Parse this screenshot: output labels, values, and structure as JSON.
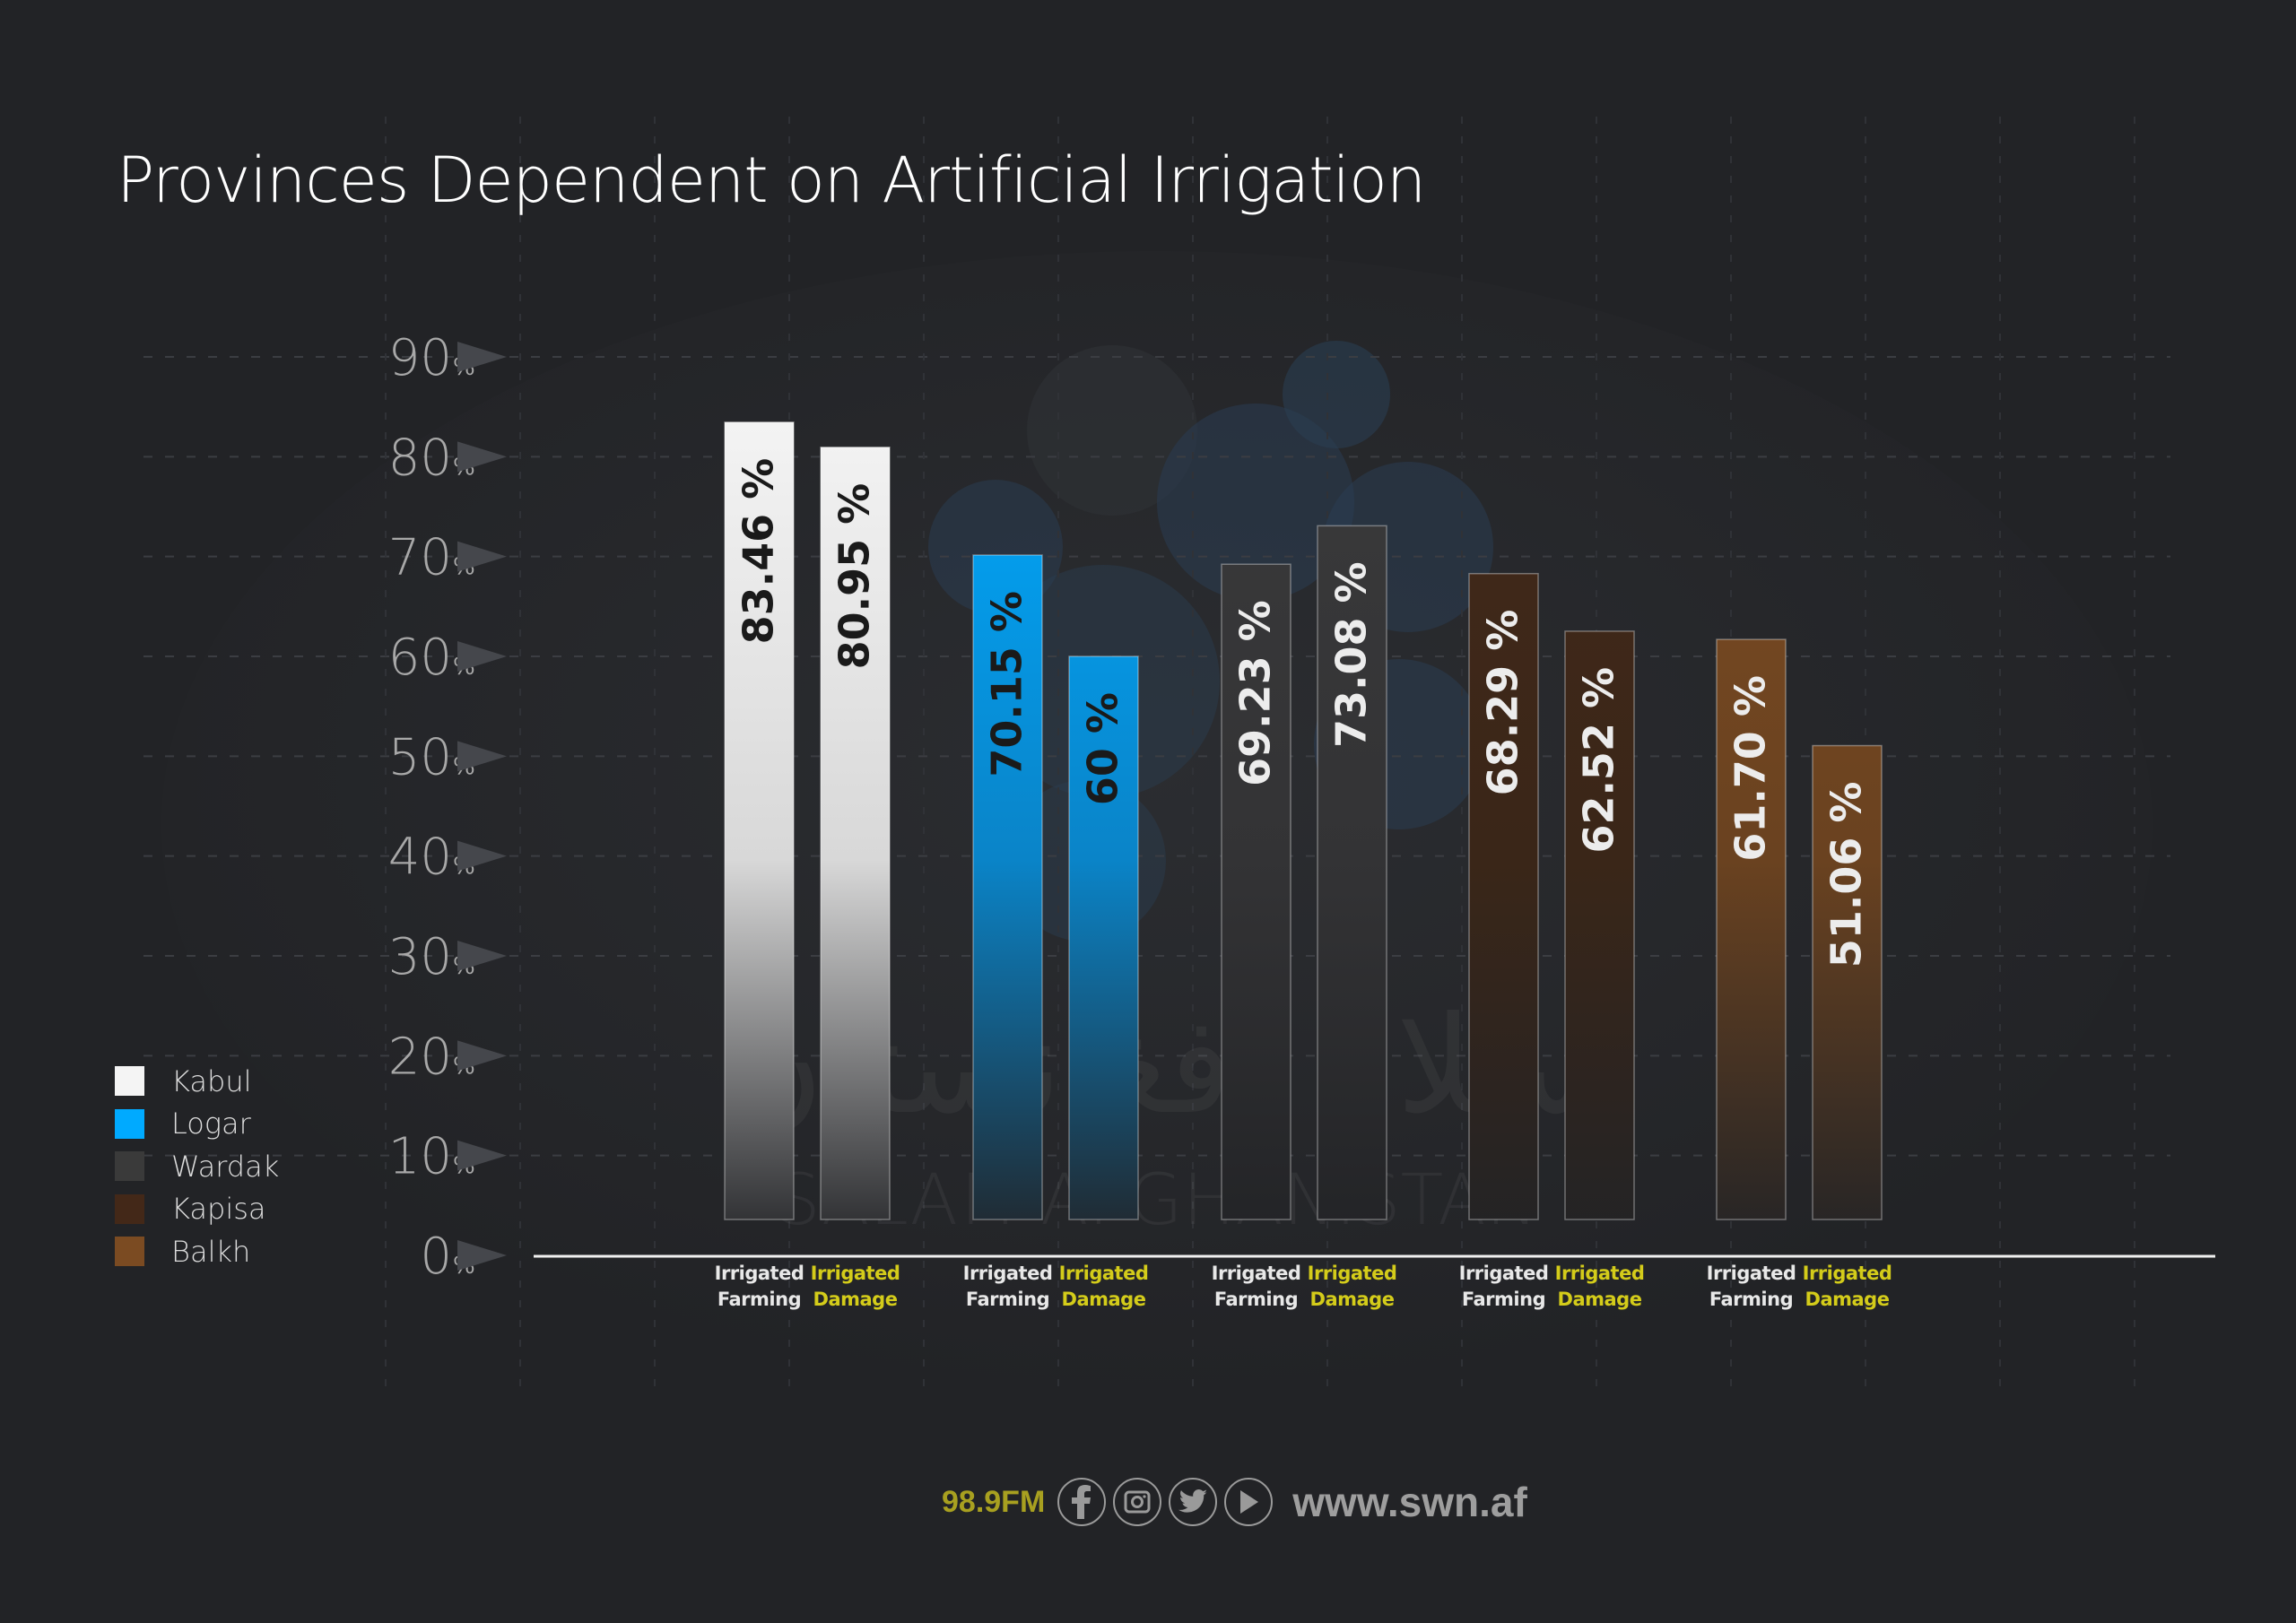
{
  "title": "Provinces Dependent on Artificial Irrigation",
  "watermark": {
    "arabic": "سلام افغانستان",
    "latin": "SALAM AFGHANISTAN"
  },
  "legend": [
    {
      "label": "Kabul",
      "color": "#f4f4f4"
    },
    {
      "label": "Logar",
      "color": "#00aaff"
    },
    {
      "label": "Wardak",
      "color": "#3a3a3a"
    },
    {
      "label": "Kapisa",
      "color": "#432818"
    },
    {
      "label": "Balkh",
      "color": "#7b4b22"
    }
  ],
  "footer": {
    "frequency": "98.9FM",
    "icons": [
      "facebook-icon",
      "instagram-icon",
      "twitter-icon",
      "youtube-play-icon"
    ],
    "url": "www.swn.af"
  },
  "chart_data": {
    "type": "bar",
    "title": "Provinces Dependent on Artificial Irrigation",
    "xlabel": "",
    "ylabel": "",
    "ylim": [
      0,
      90
    ],
    "yticks": [
      0,
      10,
      20,
      30,
      40,
      50,
      60,
      70,
      80,
      90
    ],
    "ytick_labels": [
      "0",
      "10",
      "20",
      "30",
      "40",
      "50",
      "60",
      "70",
      "80",
      "90"
    ],
    "ytick_suffix": "%",
    "grid": true,
    "legend_position": "left",
    "categories": [
      "Kabul",
      "Logar",
      "Wardak",
      "Kapisa",
      "Balkh"
    ],
    "bar_labels": {
      "farming": [
        "Irrigated",
        "Farming"
      ],
      "damage": [
        "Irrigated",
        "Damage"
      ]
    },
    "series": [
      {
        "name": "Irrigated Farming",
        "values": [
          83.46,
          70.15,
          69.23,
          68.29,
          61.7
        ]
      },
      {
        "name": "Irrigated Damage",
        "values": [
          80.95,
          60,
          73.08,
          62.52,
          51.06
        ]
      }
    ],
    "data_labels": {
      "farming": [
        "83.46 %",
        "70.15 %",
        "69.23 %",
        "68.29 %",
        "61.70 %"
      ],
      "damage": [
        "80.95 %",
        "60 %",
        "73.08 %",
        "62.52 %",
        "51.06 %"
      ]
    },
    "colors": {
      "label_farming": "#e8e8e8",
      "label_damage": "#d4cc1a",
      "dark_text": "#1a1a1a",
      "light_text": "#ececec"
    }
  }
}
